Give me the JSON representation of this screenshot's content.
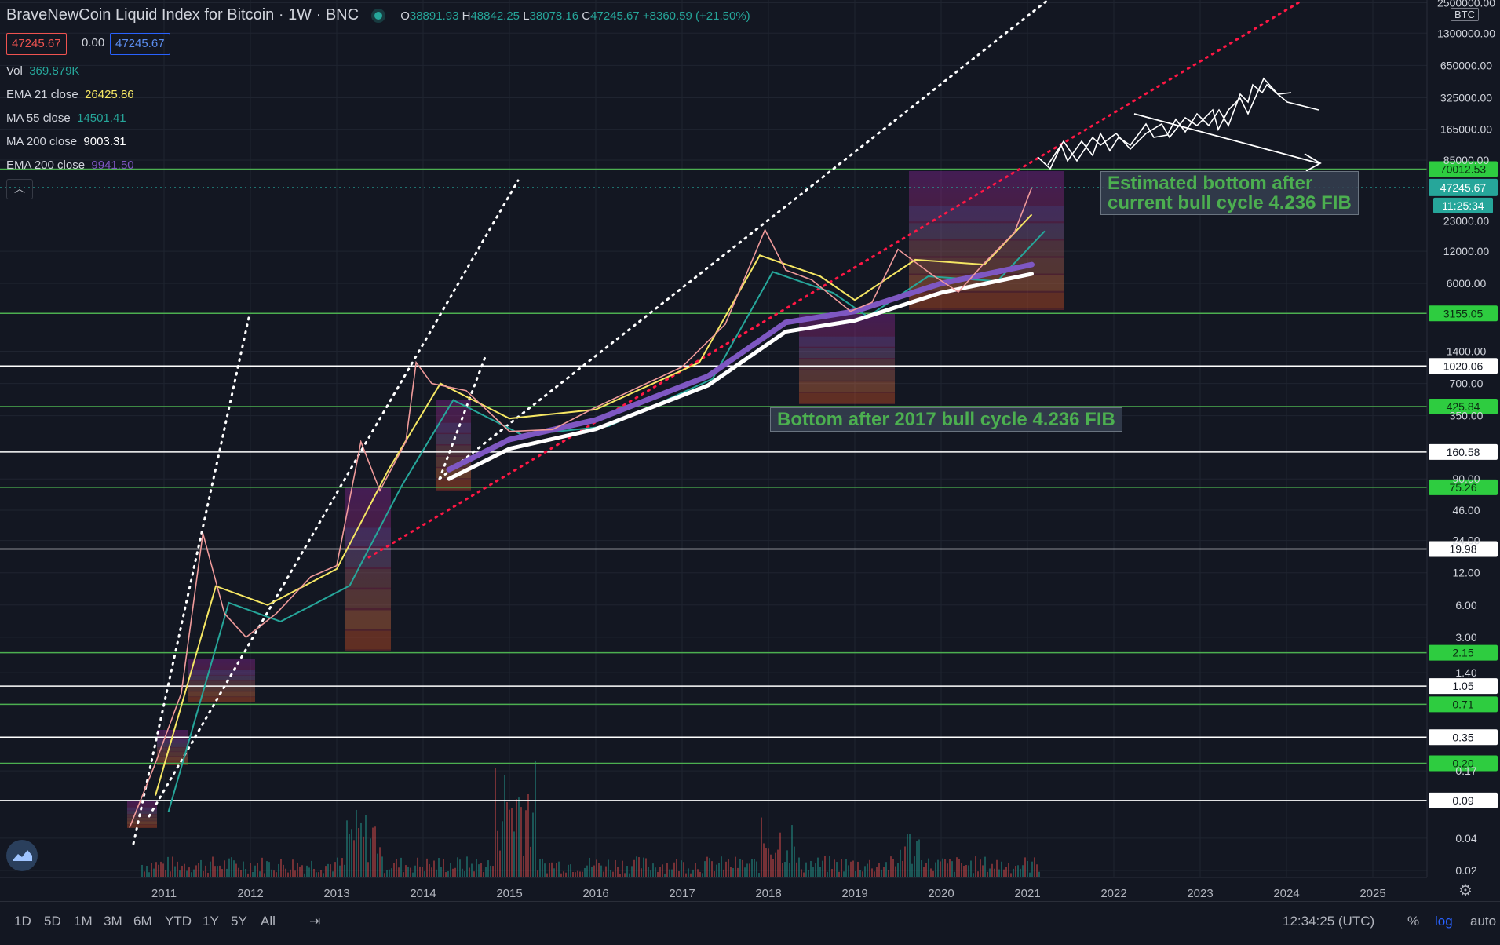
{
  "header": {
    "title": "BraveNewCoin Liquid Index for Bitcoin · 1W · BNC",
    "ohlc": [
      {
        "label": "O",
        "value": "38891.93"
      },
      {
        "label": "H",
        "value": "48842.25"
      },
      {
        "label": "L",
        "value": "38078.16"
      },
      {
        "label": "C",
        "value": "47245.67"
      }
    ],
    "change": "+8360.59 (+21.50%)",
    "bid": "47245.67",
    "spread": "0.00",
    "ask": "47245.67"
  },
  "indicators": [
    {
      "name": "Vol",
      "value": "369.879K",
      "color": "#26a69a"
    },
    {
      "name": "EMA 21 close",
      "value": "26425.86",
      "color": "#f5e663"
    },
    {
      "name": "MA 55 close",
      "value": "14501.41",
      "color": "#26a69a"
    },
    {
      "name": "MA 200 close",
      "value": "9003.31",
      "color": "#ffffff"
    },
    {
      "name": "EMA 200 close",
      "value": "9941.50",
      "color": "#7e57c2"
    }
  ],
  "annotations": {
    "top": "Estimated bottom after current bull cycle 4.236 FIB",
    "top_line1": "Estimated bottom after",
    "top_line2": "current bull cycle 4.236 FIB",
    "bottom": "Bottom after 2017 bull cycle 4.236 FIB"
  },
  "timeframes": [
    "1D",
    "5D",
    "1M",
    "3M",
    "6M",
    "YTD",
    "1Y",
    "5Y",
    "All"
  ],
  "clock": "12:34:25 (UTC)",
  "scale_options": [
    "%",
    "log",
    "auto"
  ],
  "currency_badge": "BTC",
  "countdown": "11:25:34",
  "chart_data": {
    "type": "line",
    "scale": "log",
    "x_ticks": [
      "2011",
      "2012",
      "2013",
      "2014",
      "2015",
      "2016",
      "2017",
      "2018",
      "2019",
      "2020",
      "2021",
      "2022",
      "2023",
      "2024",
      "2025"
    ],
    "y_ticks": [
      "2500000.00",
      "1300000.00",
      "650000.00",
      "325000.00",
      "165000.00",
      "85000.00",
      "23000.00",
      "12000.00",
      "6000.00",
      "1400.00",
      "700.00",
      "350.00",
      "90.00",
      "46.00",
      "24.00",
      "12.00",
      "6.00",
      "3.00",
      "1.40",
      "0.17",
      "0.04",
      "0.02"
    ],
    "horizontal_levels": [
      {
        "value": "70012.53",
        "color": "#4caf50"
      },
      {
        "value": "3155.05",
        "color": "#4caf50"
      },
      {
        "value": "1020.06",
        "color": "#ffffff"
      },
      {
        "value": "425.84",
        "color": "#4caf50"
      },
      {
        "value": "160.58",
        "color": "#ffffff"
      },
      {
        "value": "75.26",
        "color": "#4caf50"
      },
      {
        "value": "19.98",
        "color": "#ffffff"
      },
      {
        "value": "2.15",
        "color": "#4caf50"
      },
      {
        "value": "1.05",
        "color": "#ffffff"
      },
      {
        "value": "0.71",
        "color": "#4caf50"
      },
      {
        "value": "0.35",
        "color": "#ffffff"
      },
      {
        "value": "0.20",
        "color": "#4caf50"
      },
      {
        "value": "0.09",
        "color": "#ffffff"
      }
    ],
    "current_price": "47245.67",
    "price_series": [
      {
        "t": 2010.6,
        "v": 0.05
      },
      {
        "t": 2010.9,
        "v": 0.2
      },
      {
        "t": 2011.2,
        "v": 0.9
      },
      {
        "t": 2011.45,
        "v": 28
      },
      {
        "t": 2011.7,
        "v": 5
      },
      {
        "t": 2011.95,
        "v": 3
      },
      {
        "t": 2012.3,
        "v": 5
      },
      {
        "t": 2012.7,
        "v": 11
      },
      {
        "t": 2013.0,
        "v": 14
      },
      {
        "t": 2013.28,
        "v": 200
      },
      {
        "t": 2013.5,
        "v": 70
      },
      {
        "t": 2013.8,
        "v": 200
      },
      {
        "t": 2013.92,
        "v": 1100
      },
      {
        "t": 2014.1,
        "v": 700
      },
      {
        "t": 2014.5,
        "v": 600
      },
      {
        "t": 2015.0,
        "v": 250
      },
      {
        "t": 2015.5,
        "v": 260
      },
      {
        "t": 2016.0,
        "v": 420
      },
      {
        "t": 2016.5,
        "v": 650
      },
      {
        "t": 2017.0,
        "v": 1000
      },
      {
        "t": 2017.5,
        "v": 2500
      },
      {
        "t": 2017.96,
        "v": 19000
      },
      {
        "t": 2018.2,
        "v": 8000
      },
      {
        "t": 2018.5,
        "v": 6500
      },
      {
        "t": 2018.95,
        "v": 3300
      },
      {
        "t": 2019.2,
        "v": 4000
      },
      {
        "t": 2019.5,
        "v": 12500
      },
      {
        "t": 2019.9,
        "v": 7200
      },
      {
        "t": 2020.2,
        "v": 5000
      },
      {
        "t": 2020.5,
        "v": 9300
      },
      {
        "t": 2020.85,
        "v": 18000
      },
      {
        "t": 2021.05,
        "v": 47245.67
      }
    ]
  }
}
